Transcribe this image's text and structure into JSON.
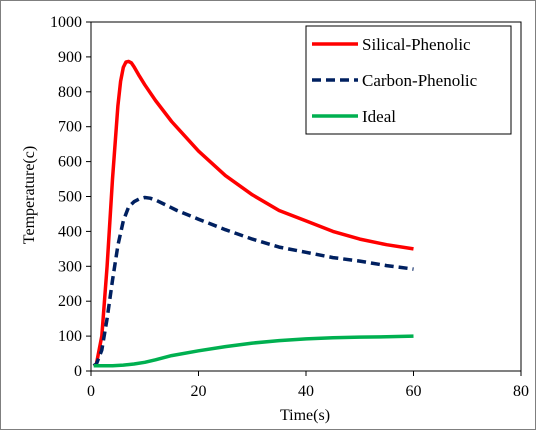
{
  "chart_data": {
    "type": "line",
    "xlabel": "Time(s)",
    "ylabel": "Temperature(c)",
    "xlim": [
      0,
      80
    ],
    "ylim": [
      0,
      1000
    ],
    "x_ticks": [
      0,
      20,
      40,
      60,
      80
    ],
    "y_ticks": [
      0,
      100,
      200,
      300,
      400,
      500,
      600,
      700,
      800,
      900,
      1000
    ],
    "grid": false,
    "legend_position": "top-right",
    "series": [
      {
        "name": "Silical-Phenolic",
        "color": "#ff0000",
        "dash": "solid",
        "x": [
          0.5,
          1,
          2,
          3,
          4,
          5,
          5.5,
          6,
          6.5,
          7,
          7.5,
          8,
          9,
          10,
          12,
          15,
          20,
          25,
          30,
          35,
          40,
          45,
          50,
          55,
          60
        ],
        "y": [
          15,
          20,
          100,
          300,
          550,
          760,
          830,
          870,
          885,
          887,
          883,
          872,
          845,
          820,
          775,
          715,
          630,
          560,
          505,
          460,
          430,
          400,
          378,
          362,
          350
        ]
      },
      {
        "name": "Carbon-Phenolic",
        "color": "#002060",
        "dash": "dashed",
        "x": [
          0.5,
          1,
          2,
          3,
          4,
          5,
          6,
          7,
          8,
          9,
          10,
          11,
          12,
          14,
          16,
          20,
          25,
          30,
          35,
          40,
          45,
          50,
          55,
          60
        ],
        "y": [
          15,
          20,
          60,
          150,
          260,
          360,
          430,
          470,
          485,
          493,
          497,
          495,
          490,
          475,
          460,
          435,
          405,
          378,
          355,
          340,
          325,
          315,
          302,
          292
        ]
      },
      {
        "name": "Ideal",
        "color": "#00b050",
        "dash": "solid",
        "x": [
          0.5,
          2,
          4,
          6,
          8,
          10,
          12,
          15,
          20,
          25,
          30,
          35,
          40,
          45,
          50,
          55,
          60
        ],
        "y": [
          15,
          15,
          15,
          17,
          20,
          25,
          32,
          44,
          58,
          70,
          80,
          87,
          92,
          95,
          97,
          98,
          100
        ]
      }
    ]
  }
}
